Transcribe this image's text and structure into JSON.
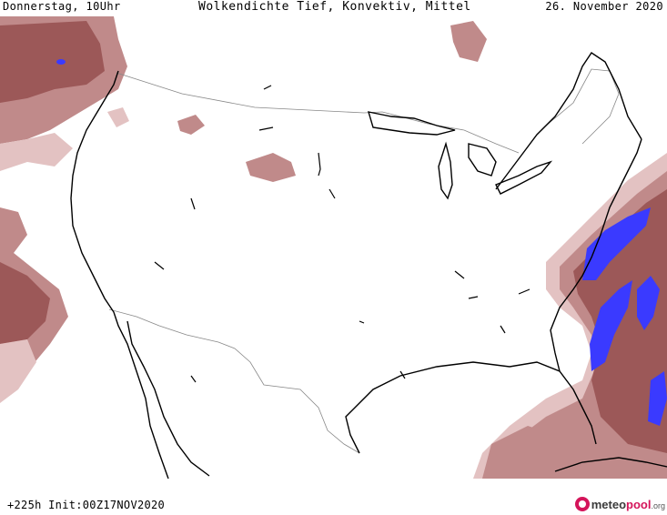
{
  "header": {
    "left": "Donnerstag, 10Uhr",
    "center": "Wolkendichte   Tief, Konvektiv, Mittel",
    "right": "26. November 2020"
  },
  "footer": {
    "run": "+225h Init:00Z17NOV2020",
    "logo_main": "meteo",
    "logo_accent": "pool",
    "logo_suffix": ".org"
  },
  "colors": {
    "cloud_light": "#e3c2c2",
    "cloud_medium": "#c08a8a",
    "cloud_dense": "#9c5858",
    "cloud_core": "#3a3aff",
    "coastline": "#000000",
    "border": "#888888"
  },
  "icons": {
    "logo": "meteopool-logo-icon"
  }
}
